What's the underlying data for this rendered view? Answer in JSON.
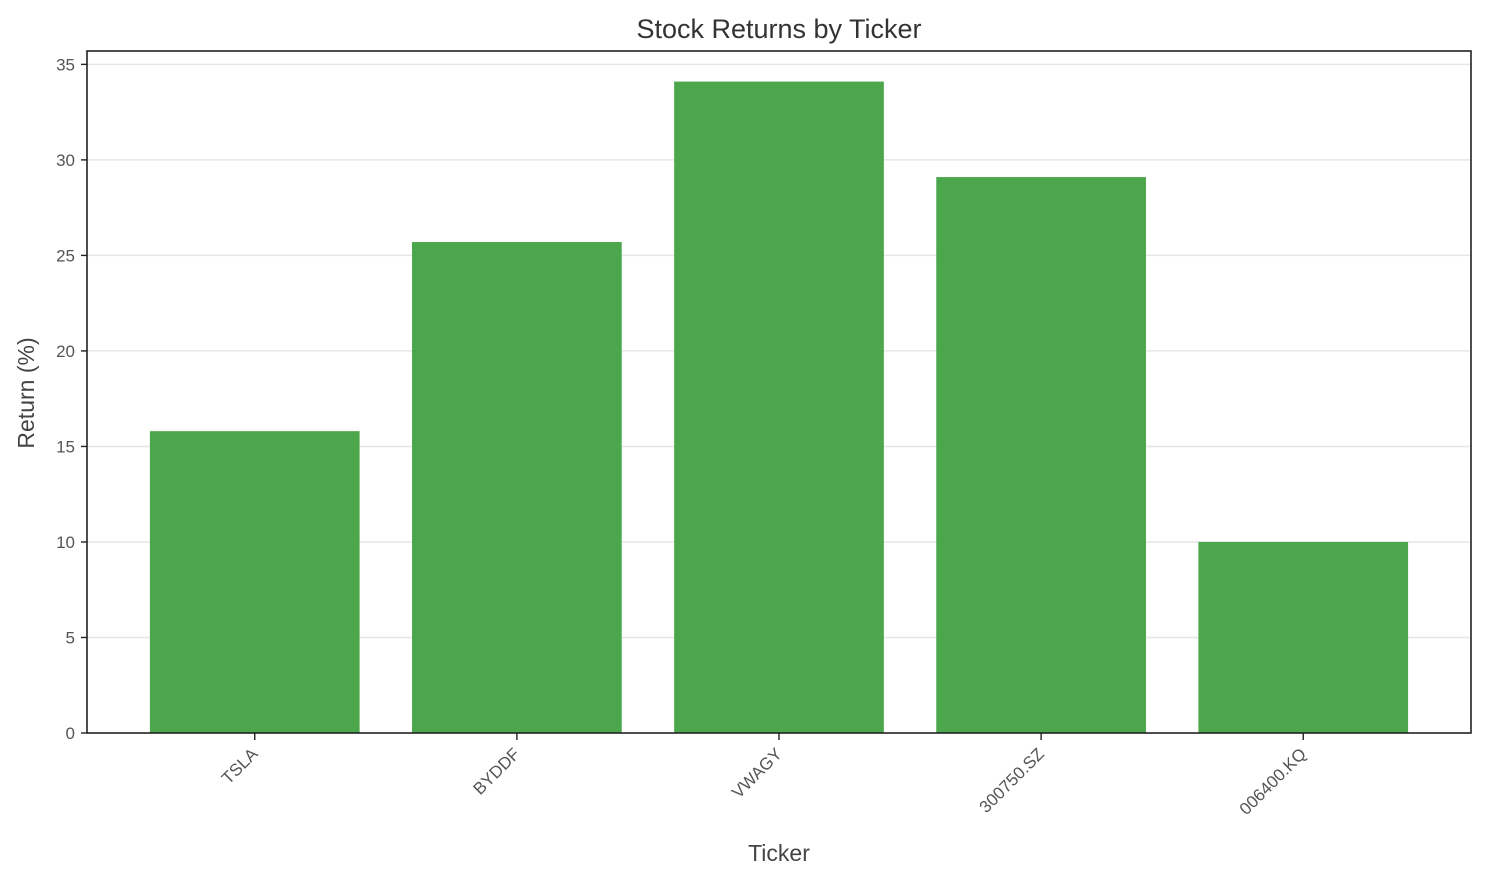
{
  "chart_data": {
    "type": "bar",
    "title": "Stock Returns by Ticker",
    "xlabel": "Ticker",
    "ylabel": "Return (%)",
    "categories": [
      "TSLA",
      "BYDDF",
      "VWAGY",
      "300750.SZ",
      "006400.KQ"
    ],
    "values": [
      15.8,
      25.7,
      34.1,
      29.1,
      10.0
    ],
    "ylim": [
      0,
      35.7
    ],
    "yticks": [
      0,
      5,
      10,
      15,
      20,
      25,
      30,
      35
    ],
    "grid": true,
    "bar_color": "#4ca64c"
  }
}
